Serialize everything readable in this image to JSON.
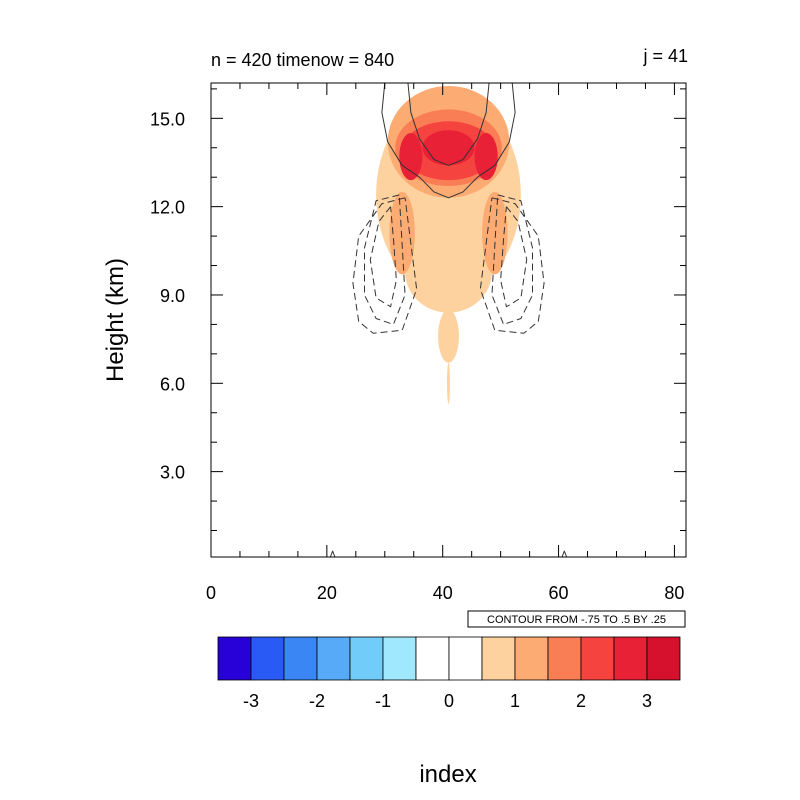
{
  "header": {
    "left_title": "n = 420 timenow = 840",
    "right_title": "j = 41"
  },
  "contour_info": "CONTOUR FROM -.75 TO .5 BY .25",
  "chart_data": {
    "type": "heatmap",
    "xlabel": "index",
    "ylabel": "Height (km)",
    "xlim": [
      0,
      82
    ],
    "ylim": [
      0.1,
      16.2
    ],
    "x_ticks": [
      0,
      20,
      40,
      60,
      80
    ],
    "y_ticks": [
      3.0,
      6.0,
      9.0,
      12.0,
      15.0
    ],
    "x_tick_labels": [
      "0",
      "20",
      "40",
      "60",
      "80"
    ],
    "y_tick_labels": [
      "3.0",
      "6.0",
      "9.0",
      "12.0",
      "15.0"
    ],
    "colorbar": {
      "labels": [
        "-3",
        "-2",
        "-1",
        "0",
        "1",
        "2",
        "3"
      ],
      "label_values": [
        -3,
        -2,
        -1,
        0,
        1,
        2,
        3
      ],
      "colors": [
        "#2800d8",
        "#2a5af5",
        "#3b86f5",
        "#56aaf8",
        "#72ccfa",
        "#a0e8fd",
        "#ffffff",
        "#ffffff",
        "#fdd29e",
        "#fcab72",
        "#fa7e55",
        "#f54440",
        "#e82136",
        "#d6112e"
      ]
    },
    "filled_regions": [
      {
        "level": 1,
        "color": "#fdd29e",
        "cx": 41,
        "cy": 12.4,
        "rx": 12.5,
        "ry": 3.4
      },
      {
        "level": 1,
        "color": "#fdd29e",
        "cx": 41,
        "cy": 9.8,
        "rx": 7.5,
        "ry": 1.4
      },
      {
        "level": 1,
        "color": "#fdd29e",
        "cx": 41,
        "cy": 7.6,
        "rx": 1.8,
        "ry": 0.9
      },
      {
        "level": 1,
        "color": "#fdd29e",
        "cx": 41,
        "cy": 6.0,
        "rx": 0.25,
        "ry": 0.7
      },
      {
        "level": 2,
        "color": "#fcab72",
        "cx": 41,
        "cy": 14.2,
        "rx": 10.5,
        "ry": 1.9
      },
      {
        "level": 2,
        "color": "#fcab72",
        "cx": 33,
        "cy": 11.1,
        "rx": 2.2,
        "ry": 1.4
      },
      {
        "level": 2,
        "color": "#fcab72",
        "cx": 49,
        "cy": 11.1,
        "rx": 2.2,
        "ry": 1.4
      },
      {
        "level": 2.5,
        "color": "#fa7e55",
        "cx": 41,
        "cy": 14.0,
        "rx": 9.2,
        "ry": 1.3
      },
      {
        "level": 3,
        "color": "#f54440",
        "cx": 41,
        "cy": 13.9,
        "rx": 8.0,
        "ry": 1.0
      },
      {
        "level": 3.5,
        "color": "#e82136",
        "cx": 41,
        "cy": 14.0,
        "rx": 4.5,
        "ry": 0.6
      },
      {
        "level": 3.5,
        "color": "#e82136",
        "cx": 34.5,
        "cy": 13.7,
        "rx": 2.0,
        "ry": 0.8
      },
      {
        "level": 3.5,
        "color": "#e82136",
        "cx": 47.5,
        "cy": 13.7,
        "rx": 2.0,
        "ry": 0.8
      }
    ],
    "contour_lines": [
      {
        "style": "solid",
        "points": [
          [
            30,
            16.2
          ],
          [
            29.5,
            15.2
          ],
          [
            30.5,
            14.2
          ],
          [
            33,
            13.4
          ],
          [
            36,
            13.0
          ],
          [
            38.5,
            12.5
          ],
          [
            41,
            12.3
          ],
          [
            43.5,
            12.5
          ],
          [
            46,
            13.0
          ],
          [
            49,
            13.4
          ],
          [
            51.5,
            14.2
          ],
          [
            52.5,
            15.2
          ],
          [
            52,
            16.2
          ]
        ]
      },
      {
        "style": "solid",
        "points": [
          [
            34,
            16.2
          ],
          [
            34.5,
            15.2
          ],
          [
            36,
            14.3
          ],
          [
            38.5,
            13.6
          ],
          [
            41,
            13.4
          ],
          [
            43.5,
            13.6
          ],
          [
            46,
            14.3
          ],
          [
            47.5,
            15.2
          ],
          [
            48,
            16.2
          ]
        ]
      },
      {
        "style": "dashed",
        "points": [
          [
            31,
            12.0
          ],
          [
            29,
            11.5
          ],
          [
            27.5,
            10.2
          ],
          [
            28.5,
            8.9
          ],
          [
            31,
            8.6
          ],
          [
            32,
            9.5
          ],
          [
            31.5,
            10.9
          ],
          [
            31,
            12.0
          ]
        ]
      },
      {
        "style": "dashed",
        "points": [
          [
            32.5,
            12.4
          ],
          [
            28.5,
            12.2
          ],
          [
            26.5,
            10.6
          ],
          [
            26.5,
            9.0
          ],
          [
            28.5,
            8.2
          ],
          [
            31.5,
            8.0
          ],
          [
            33.5,
            9.0
          ],
          [
            32.5,
            12.4
          ]
        ]
      },
      {
        "style": "dashed",
        "points": [
          [
            33.5,
            12.3
          ],
          [
            29.5,
            12.1
          ],
          [
            25.5,
            11.0
          ],
          [
            24.5,
            9.4
          ],
          [
            25.5,
            8.1
          ],
          [
            28,
            7.7
          ],
          [
            33,
            7.8
          ],
          [
            35.5,
            9.2
          ],
          [
            33.5,
            12.3
          ]
        ]
      },
      {
        "style": "dashed",
        "points": [
          [
            51,
            12.0
          ],
          [
            53,
            11.5
          ],
          [
            54.5,
            10.2
          ],
          [
            53.5,
            8.9
          ],
          [
            51,
            8.6
          ],
          [
            50,
            9.5
          ],
          [
            50.5,
            10.9
          ],
          [
            51,
            12.0
          ]
        ]
      },
      {
        "style": "dashed",
        "points": [
          [
            49.5,
            12.4
          ],
          [
            53.5,
            12.2
          ],
          [
            55.5,
            10.6
          ],
          [
            55.5,
            9.0
          ],
          [
            53.5,
            8.2
          ],
          [
            50.5,
            8.0
          ],
          [
            48.5,
            9.0
          ],
          [
            49.5,
            12.4
          ]
        ]
      },
      {
        "style": "dashed",
        "points": [
          [
            48.5,
            12.3
          ],
          [
            52.5,
            12.1
          ],
          [
            56.5,
            11.0
          ],
          [
            57.5,
            9.4
          ],
          [
            56.5,
            8.1
          ],
          [
            54,
            7.7
          ],
          [
            49,
            7.8
          ],
          [
            46.5,
            9.2
          ],
          [
            48.5,
            12.3
          ]
        ]
      },
      {
        "style": "solid",
        "points": [
          [
            20.6,
            0.1
          ],
          [
            21,
            0.3
          ],
          [
            21.4,
            0.1
          ]
        ]
      },
      {
        "style": "solid",
        "points": [
          [
            60.6,
            0.1
          ],
          [
            61,
            0.3
          ],
          [
            61.4,
            0.1
          ]
        ]
      }
    ]
  }
}
